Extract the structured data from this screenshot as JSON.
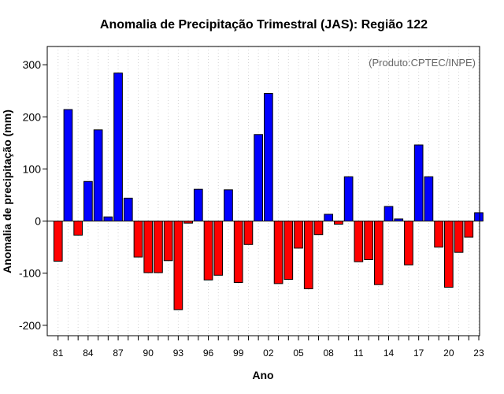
{
  "chart_data": {
    "type": "bar",
    "title": "Anomalia de Precipitação Trimestral (JAS): Região 122",
    "xlabel": "Ano",
    "ylabel": "Anomalia de precipitação (mm)",
    "annotation": "(Produto:CPTEC/INPE)",
    "ylim": [
      -220,
      335
    ],
    "yticks": [
      -200,
      -100,
      0,
      100,
      200,
      300
    ],
    "xtick_labels": [
      "81",
      "84",
      "87",
      "90",
      "93",
      "96",
      "99",
      "02",
      "05",
      "08",
      "11",
      "14",
      "17",
      "20",
      "23"
    ],
    "x": [
      1981,
      1982,
      1983,
      1984,
      1985,
      1986,
      1987,
      1988,
      1989,
      1990,
      1991,
      1992,
      1993,
      1994,
      1995,
      1996,
      1997,
      1998,
      1999,
      2000,
      2001,
      2002,
      2003,
      2004,
      2005,
      2006,
      2007,
      2008,
      2009,
      2010,
      2011,
      2012,
      2013,
      2014,
      2015,
      2016,
      2017,
      2018,
      2019,
      2020,
      2021,
      2022,
      2023
    ],
    "values": [
      -77,
      214,
      -27,
      76,
      175,
      8,
      284,
      44,
      -69,
      -99,
      -99,
      -76,
      -170,
      -4,
      61,
      -113,
      -104,
      60,
      -118,
      -45,
      166,
      245,
      -120,
      -112,
      -52,
      -130,
      -26,
      13,
      -6,
      85,
      -78,
      -74,
      -122,
      28,
      4,
      -84,
      146,
      85,
      -50,
      -127,
      -60,
      -31,
      16
    ],
    "positive_color": "#0000ff",
    "negative_color": "#ff0000",
    "grid": "vertical dotted"
  }
}
